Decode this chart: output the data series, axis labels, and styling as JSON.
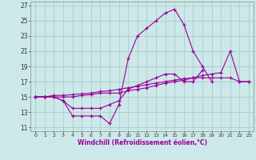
{
  "xlabel": "Windchill (Refroidissement éolien,°C)",
  "background_color": "#cce8e8",
  "grid_color": "#aacccc",
  "line_color": "#990099",
  "xlim": [
    -0.5,
    23.5
  ],
  "ylim": [
    10.5,
    27.5
  ],
  "yticks": [
    11,
    13,
    15,
    17,
    19,
    21,
    23,
    25,
    27
  ],
  "xticks": [
    0,
    1,
    2,
    3,
    4,
    5,
    6,
    7,
    8,
    9,
    10,
    11,
    12,
    13,
    14,
    15,
    16,
    17,
    18,
    19,
    20,
    21,
    22,
    23
  ],
  "series": [
    [
      15.0,
      15.0,
      15.0,
      14.5,
      12.5,
      12.5,
      12.5,
      12.5,
      11.5,
      14.0,
      20.0,
      23.0,
      24.0,
      25.0,
      26.0,
      26.5,
      24.5,
      21.0,
      19.0,
      17.0,
      null,
      null,
      null,
      null
    ],
    [
      15.0,
      15.0,
      15.0,
      14.5,
      13.5,
      13.5,
      13.5,
      13.5,
      14.0,
      14.5,
      16.0,
      16.5,
      17.0,
      17.5,
      18.0,
      18.0,
      17.0,
      17.0,
      18.5,
      null,
      null,
      null,
      null,
      null
    ],
    [
      15.0,
      15.0,
      15.0,
      15.0,
      15.0,
      15.2,
      15.3,
      15.5,
      15.5,
      15.5,
      15.8,
      16.0,
      16.2,
      16.5,
      16.8,
      17.0,
      17.2,
      17.5,
      17.8,
      18.0,
      18.2,
      21.0,
      17.0,
      17.0
    ],
    [
      15.0,
      15.0,
      15.2,
      15.2,
      15.3,
      15.4,
      15.5,
      15.7,
      15.8,
      16.0,
      16.2,
      16.4,
      16.6,
      16.8,
      17.0,
      17.2,
      17.4,
      17.5,
      17.5,
      17.5,
      17.5,
      17.5,
      17.0,
      17.0
    ]
  ]
}
